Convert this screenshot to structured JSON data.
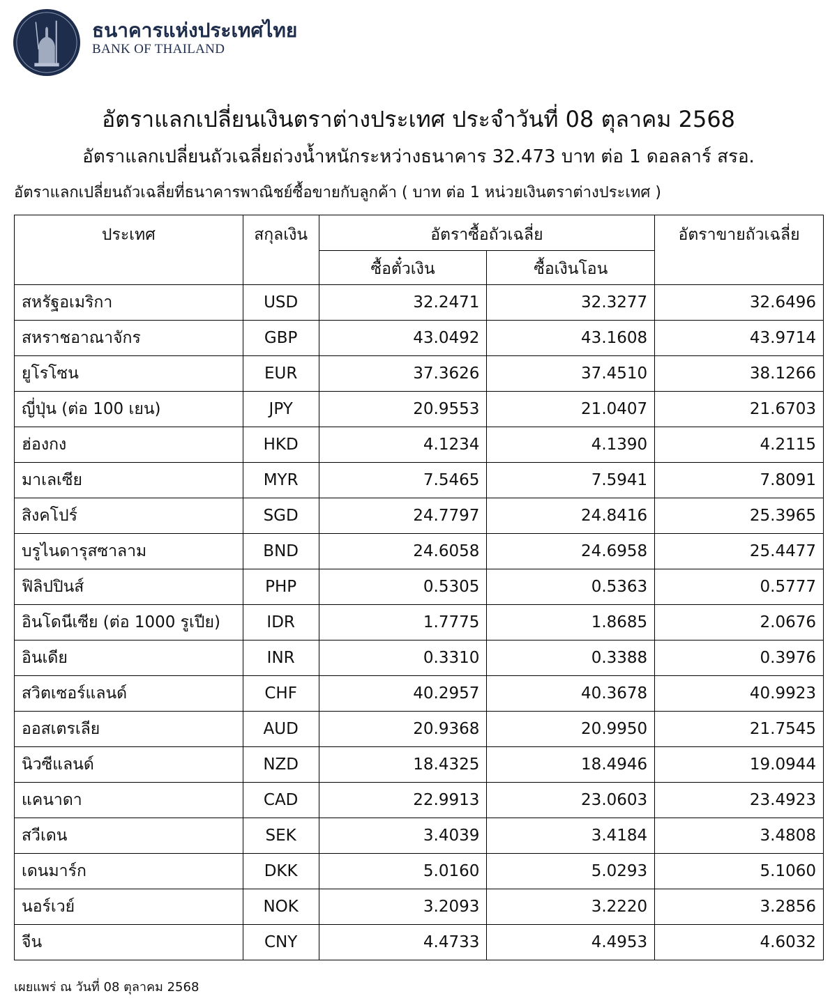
{
  "header": {
    "bank_name_th": "ธนาคารแห่งประเทศไทย",
    "bank_name_en": "BANK OF THAILAND",
    "logo_color": "#1f2d4d"
  },
  "title": "อัตราแลกเปลี่ยนเงินตราต่างประเทศ ประจำวันที่ 08 ตุลาคม 2568",
  "subtitle": "อัตราแลกเปลี่ยนถัวเฉลี่ยถ่วงน้ำหนักระหว่างธนาคาร 32.473 บาท ต่อ 1 ดอลลาร์ สรอ.",
  "note": "อัตราแลกเปลี่ยนถัวเฉลี่ยที่ธนาคารพาณิชย์ซื้อขายกับลูกค้า ( บาท ต่อ 1 หน่วยเงินตราต่างประเทศ )",
  "table": {
    "headers": {
      "country": "ประเทศ",
      "currency": "สกุลเงิน",
      "buy_avg": "อัตราซื้อถัวเฉลี่ย",
      "buy_cash": "ซื้อตั๋วเงิน",
      "buy_transfer": "ซื้อเงินโอน",
      "sell_avg": "อัตราขายถัวเฉลี่ย"
    },
    "rows": [
      [
        "สหรัฐอเมริกา",
        "USD",
        "32.2471",
        "32.3277",
        "32.6496"
      ],
      [
        "สหราชอาณาจักร",
        "GBP",
        "43.0492",
        "43.1608",
        "43.9714"
      ],
      [
        "ยูโรโซน",
        "EUR",
        "37.3626",
        "37.4510",
        "38.1266"
      ],
      [
        "ญี่ปุ่น (ต่อ 100 เยน)",
        "JPY",
        "20.9553",
        "21.0407",
        "21.6703"
      ],
      [
        "ฮ่องกง",
        "HKD",
        "4.1234",
        "4.1390",
        "4.2115"
      ],
      [
        "มาเลเซีย",
        "MYR",
        "7.5465",
        "7.5941",
        "7.8091"
      ],
      [
        "สิงคโปร์",
        "SGD",
        "24.7797",
        "24.8416",
        "25.3965"
      ],
      [
        "บรูไนดารุสซาลาม",
        "BND",
        "24.6058",
        "24.6958",
        "25.4477"
      ],
      [
        "ฟิลิปปินส์",
        "PHP",
        "0.5305",
        "0.5363",
        "0.5777"
      ],
      [
        "อินโดนีเซีย (ต่อ 1000 รูเปีย)",
        "IDR",
        "1.7775",
        "1.8685",
        "2.0676"
      ],
      [
        "อินเดีย",
        "INR",
        "0.3310",
        "0.3388",
        "0.3976"
      ],
      [
        "สวิตเซอร์แลนด์",
        "CHF",
        "40.2957",
        "40.3678",
        "40.9923"
      ],
      [
        "ออสเตรเลีย",
        "AUD",
        "20.9368",
        "20.9950",
        "21.7545"
      ],
      [
        "นิวซีแลนด์",
        "NZD",
        "18.4325",
        "18.4946",
        "19.0944"
      ],
      [
        "แคนาดา",
        "CAD",
        "22.9913",
        "23.0603",
        "23.4923"
      ],
      [
        "สวีเดน",
        "SEK",
        "3.4039",
        "3.4184",
        "3.4808"
      ],
      [
        "เดนมาร์ก",
        "DKK",
        "5.0160",
        "5.0293",
        "5.1060"
      ],
      [
        "นอร์เวย์",
        "NOK",
        "3.2093",
        "3.2220",
        "3.2856"
      ],
      [
        "จีน",
        "CNY",
        "4.4733",
        "4.4953",
        "4.6032"
      ]
    ]
  },
  "footer": "เผยแพร่ ณ วันที่ 08 ตุลาคม 2568"
}
